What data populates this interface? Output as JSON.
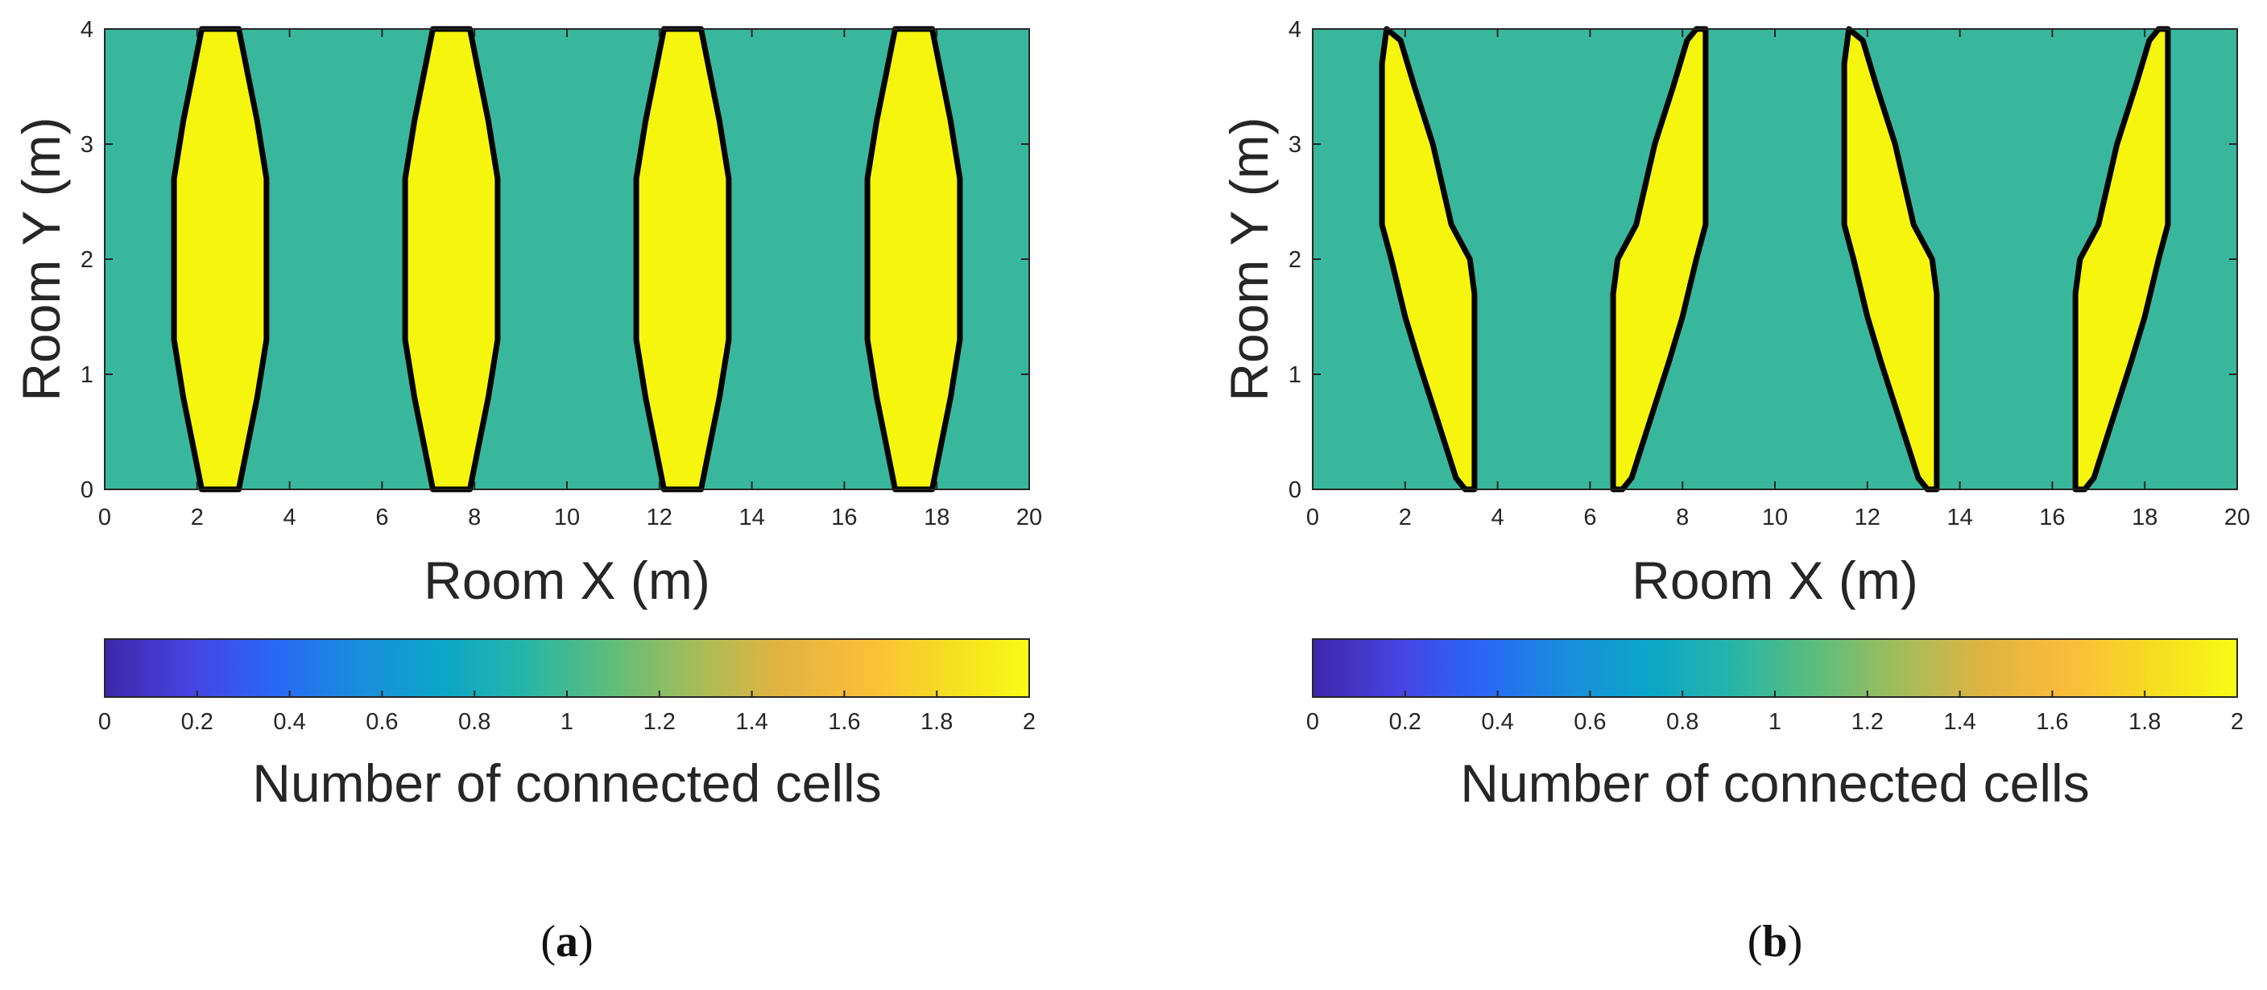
{
  "chart_data": [
    {
      "type": "heatmap",
      "panel_label": "a",
      "xlabel": "Room X (m)",
      "ylabel": "Room Y (m)",
      "xlim": [
        0,
        20
      ],
      "ylim": [
        0,
        4
      ],
      "xticks": [
        "0",
        "2",
        "4",
        "6",
        "8",
        "10",
        "12",
        "14",
        "16",
        "18",
        "20"
      ],
      "yticks": [
        "0",
        "1",
        "2",
        "3",
        "4"
      ],
      "background_value": 1,
      "region_value": 2,
      "regions": [
        {
          "name": "cell-region-1",
          "outline": [
            [
              2.1,
              0
            ],
            [
              2.9,
              0
            ],
            [
              3.1,
              0.4
            ],
            [
              3.3,
              0.8
            ],
            [
              3.5,
              1.3
            ],
            [
              3.5,
              2.7
            ],
            [
              3.3,
              3.2
            ],
            [
              3.1,
              3.6
            ],
            [
              2.9,
              4
            ],
            [
              2.1,
              4
            ],
            [
              1.9,
              3.6
            ],
            [
              1.7,
              3.2
            ],
            [
              1.5,
              2.7
            ],
            [
              1.5,
              1.3
            ],
            [
              1.7,
              0.8
            ],
            [
              1.9,
              0.4
            ]
          ]
        },
        {
          "name": "cell-region-2",
          "outline": [
            [
              7.1,
              0
            ],
            [
              7.9,
              0
            ],
            [
              8.1,
              0.4
            ],
            [
              8.3,
              0.8
            ],
            [
              8.5,
              1.3
            ],
            [
              8.5,
              2.7
            ],
            [
              8.3,
              3.2
            ],
            [
              8.1,
              3.6
            ],
            [
              7.9,
              4
            ],
            [
              7.1,
              4
            ],
            [
              6.9,
              3.6
            ],
            [
              6.7,
              3.2
            ],
            [
              6.5,
              2.7
            ],
            [
              6.5,
              1.3
            ],
            [
              6.7,
              0.8
            ],
            [
              6.9,
              0.4
            ]
          ]
        },
        {
          "name": "cell-region-3",
          "outline": [
            [
              12.1,
              0
            ],
            [
              12.9,
              0
            ],
            [
              13.1,
              0.4
            ],
            [
              13.3,
              0.8
            ],
            [
              13.5,
              1.3
            ],
            [
              13.5,
              2.7
            ],
            [
              13.3,
              3.2
            ],
            [
              13.1,
              3.6
            ],
            [
              12.9,
              4
            ],
            [
              12.1,
              4
            ],
            [
              11.9,
              3.6
            ],
            [
              11.7,
              3.2
            ],
            [
              11.5,
              2.7
            ],
            [
              11.5,
              1.3
            ],
            [
              11.7,
              0.8
            ],
            [
              11.9,
              0.4
            ]
          ]
        },
        {
          "name": "cell-region-4",
          "outline": [
            [
              17.1,
              0
            ],
            [
              17.9,
              0
            ],
            [
              18.1,
              0.4
            ],
            [
              18.3,
              0.8
            ],
            [
              18.5,
              1.3
            ],
            [
              18.5,
              2.7
            ],
            [
              18.3,
              3.2
            ],
            [
              18.1,
              3.6
            ],
            [
              17.9,
              4
            ],
            [
              17.1,
              4
            ],
            [
              16.9,
              3.6
            ],
            [
              16.7,
              3.2
            ],
            [
              16.5,
              2.7
            ],
            [
              16.5,
              1.3
            ],
            [
              16.7,
              0.8
            ],
            [
              16.9,
              0.4
            ]
          ]
        }
      ],
      "colorbar": {
        "label": "Number of connected cells",
        "lim": [
          0,
          2
        ],
        "ticks": [
          "0",
          "0.2",
          "0.4",
          "0.6",
          "0.8",
          "1",
          "1.2",
          "1.4",
          "1.6",
          "1.8",
          "2"
        ]
      }
    },
    {
      "type": "heatmap",
      "panel_label": "b",
      "xlabel": "Room X (m)",
      "ylabel": "Room Y (m)",
      "xlim": [
        0,
        20
      ],
      "ylim": [
        0,
        4
      ],
      "xticks": [
        "0",
        "2",
        "4",
        "6",
        "8",
        "10",
        "12",
        "14",
        "16",
        "18",
        "20"
      ],
      "yticks": [
        "0",
        "1",
        "2",
        "3",
        "4"
      ],
      "background_value": 1,
      "region_value": 2,
      "regions": [
        {
          "name": "cell-region-1",
          "outline": [
            [
              1.6,
              4
            ],
            [
              1.9,
              3.9
            ],
            [
              2.2,
              3.5
            ],
            [
              2.6,
              3.0
            ],
            [
              3.0,
              2.3
            ],
            [
              3.4,
              2.0
            ],
            [
              3.5,
              1.7
            ],
            [
              3.5,
              0
            ],
            [
              3.3,
              0
            ],
            [
              3.1,
              0.1
            ],
            [
              2.7,
              0.6
            ],
            [
              2.3,
              1.1
            ],
            [
              2.0,
              1.5
            ],
            [
              1.7,
              2.0
            ],
            [
              1.5,
              2.3
            ],
            [
              1.5,
              3.7
            ]
          ]
        },
        {
          "name": "cell-region-2",
          "outline": [
            [
              6.5,
              0
            ],
            [
              6.7,
              0
            ],
            [
              6.9,
              0.1
            ],
            [
              7.3,
              0.6
            ],
            [
              7.7,
              1.1
            ],
            [
              8.0,
              1.5
            ],
            [
              8.3,
              2.0
            ],
            [
              8.5,
              2.3
            ],
            [
              8.5,
              4
            ],
            [
              8.3,
              4
            ],
            [
              8.1,
              3.9
            ],
            [
              7.8,
              3.5
            ],
            [
              7.4,
              3.0
            ],
            [
              7.0,
              2.3
            ],
            [
              6.6,
              2.0
            ],
            [
              6.5,
              1.7
            ]
          ]
        },
        {
          "name": "cell-region-3",
          "outline": [
            [
              11.6,
              4
            ],
            [
              11.9,
              3.9
            ],
            [
              12.2,
              3.5
            ],
            [
              12.6,
              3.0
            ],
            [
              13.0,
              2.3
            ],
            [
              13.4,
              2.0
            ],
            [
              13.5,
              1.7
            ],
            [
              13.5,
              0
            ],
            [
              13.3,
              0
            ],
            [
              13.1,
              0.1
            ],
            [
              12.7,
              0.6
            ],
            [
              12.3,
              1.1
            ],
            [
              12.0,
              1.5
            ],
            [
              11.7,
              2.0
            ],
            [
              11.5,
              2.3
            ],
            [
              11.5,
              3.7
            ]
          ]
        },
        {
          "name": "cell-region-4",
          "outline": [
            [
              16.5,
              0
            ],
            [
              16.7,
              0
            ],
            [
              16.9,
              0.1
            ],
            [
              17.3,
              0.6
            ],
            [
              17.7,
              1.1
            ],
            [
              18.0,
              1.5
            ],
            [
              18.3,
              2.0
            ],
            [
              18.5,
              2.3
            ],
            [
              18.5,
              4
            ],
            [
              18.3,
              4
            ],
            [
              18.1,
              3.9
            ],
            [
              17.8,
              3.5
            ],
            [
              17.4,
              3.0
            ],
            [
              17.0,
              2.3
            ],
            [
              16.6,
              2.0
            ],
            [
              16.5,
              1.7
            ]
          ]
        }
      ],
      "colorbar": {
        "label": "Number of connected cells",
        "lim": [
          0,
          2
        ],
        "ticks": [
          "0",
          "0.2",
          "0.4",
          "0.6",
          "0.8",
          "1",
          "1.2",
          "1.4",
          "1.6",
          "1.8",
          "2"
        ]
      }
    }
  ],
  "colors": {
    "background": "#38b79c",
    "region": "#f5f50d",
    "outline": "#000000",
    "colormap": [
      "#3e26a8",
      "#4743e1",
      "#2a66f7",
      "#1a8ddd",
      "#0ba6c9",
      "#27b5a8",
      "#5dbd7c",
      "#a3bd5a",
      "#e0b441",
      "#fbbc3b",
      "#f6dc22",
      "#f9fb15"
    ]
  }
}
